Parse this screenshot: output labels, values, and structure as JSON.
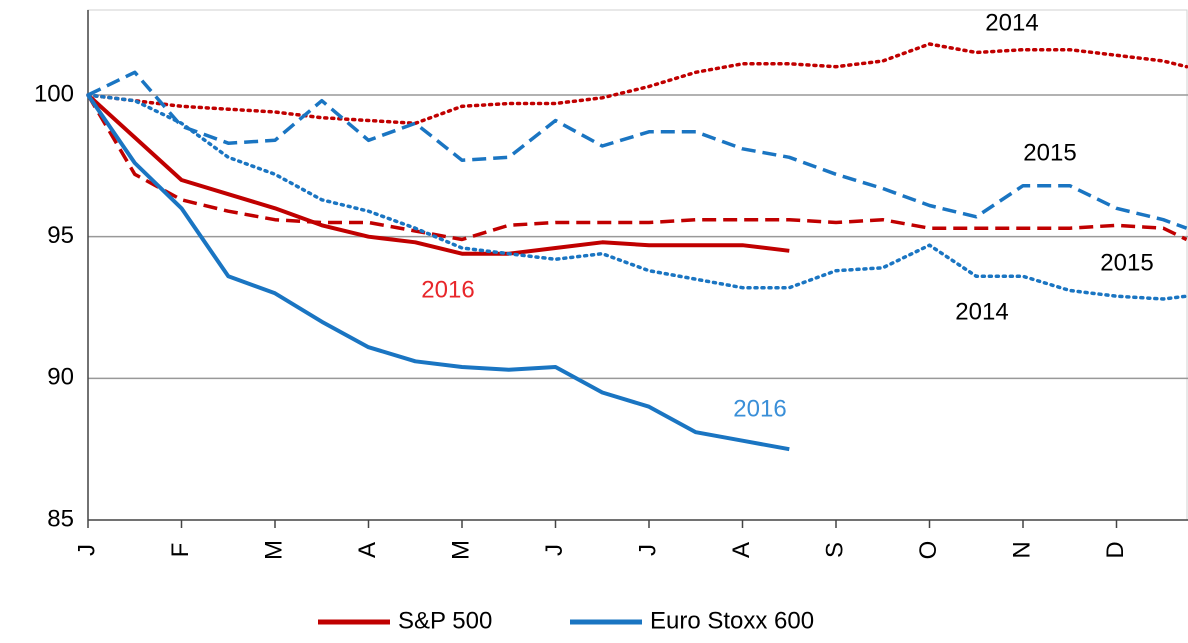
{
  "chart_data": {
    "type": "line",
    "categories": [
      "J",
      "F",
      "M",
      "A",
      "M",
      "J",
      "J",
      "A",
      "S",
      "O",
      "N",
      "D"
    ],
    "ylim": [
      85,
      103
    ],
    "yticks": [
      85,
      90,
      95,
      100
    ],
    "grid": true,
    "legend": "bottom",
    "series": [
      {
        "name": "S&P 500",
        "color": "#c00000",
        "lines": [
          {
            "label": "2014",
            "label_color": "#000000",
            "dash": "dotted",
            "x": [
              0,
              0.5,
              1,
              1.5,
              2,
              2.5,
              3,
              3.5,
              4,
              4.5,
              5,
              5.5,
              6,
              6.5,
              7,
              7.5,
              8,
              8.5,
              9,
              9.5,
              10,
              10.5,
              11,
              11.5,
              11.75
            ],
            "values": [
              100,
              99.8,
              99.6,
              99.5,
              99.4,
              99.2,
              99.1,
              99.0,
              99.6,
              99.7,
              99.7,
              99.9,
              100.3,
              100.8,
              101.1,
              101.1,
              101.0,
              101.2,
              101.8,
              101.5,
              101.6,
              101.6,
              101.4,
              101.2,
              101.0
            ]
          },
          {
            "label": "2015",
            "label_color": "#000000",
            "dash": "dashed",
            "x": [
              0,
              0.5,
              1,
              1.5,
              2,
              2.5,
              3,
              3.5,
              4,
              4.5,
              5,
              5.5,
              6,
              6.5,
              7,
              7.5,
              8,
              8.5,
              9,
              9.5,
              10,
              10.5,
              11,
              11.5,
              11.75
            ],
            "values": [
              100,
              97.2,
              96.3,
              95.9,
              95.6,
              95.5,
              95.5,
              95.2,
              94.9,
              95.4,
              95.5,
              95.5,
              95.5,
              95.6,
              95.6,
              95.6,
              95.5,
              95.6,
              95.3,
              95.3,
              95.3,
              95.3,
              95.4,
              95.3,
              94.9
            ]
          },
          {
            "label": "2016",
            "label_color": "#e8262a",
            "dash": "solid",
            "x": [
              0,
              0.5,
              1,
              1.5,
              2,
              2.5,
              3,
              3.5,
              4,
              4.5,
              5,
              5.5,
              6,
              6.5,
              7,
              7.5
            ],
            "values": [
              100,
              98.5,
              97.0,
              96.5,
              96.0,
              95.4,
              95.0,
              94.8,
              94.4,
              94.4,
              94.6,
              94.8,
              94.7,
              94.7,
              94.7,
              94.5
            ]
          }
        ]
      },
      {
        "name": "Euro Stoxx 600",
        "color": "#1a75c2",
        "lines": [
          {
            "label": "2014",
            "label_color": "#000000",
            "dash": "dotted",
            "x": [
              0,
              0.5,
              1,
              1.5,
              2,
              2.5,
              3,
              3.5,
              4,
              4.5,
              5,
              5.5,
              6,
              6.5,
              7,
              7.5,
              8,
              8.5,
              9,
              9.5,
              10,
              10.5,
              11,
              11.5,
              11.75
            ],
            "values": [
              100,
              99.8,
              99.0,
              97.8,
              97.2,
              96.3,
              95.9,
              95.3,
              94.6,
              94.4,
              94.2,
              94.4,
              93.8,
              93.5,
              93.2,
              93.2,
              93.8,
              93.9,
              94.7,
              93.6,
              93.6,
              93.1,
              92.9,
              92.8,
              92.9
            ]
          },
          {
            "label": "2015",
            "label_color": "#000000",
            "dash": "dashed",
            "x": [
              0,
              0.5,
              1,
              1.5,
              2,
              2.5,
              3,
              3.5,
              4,
              4.5,
              5,
              5.5,
              6,
              6.5,
              7,
              7.5,
              8,
              8.5,
              9,
              9.5,
              10,
              10.5,
              11,
              11.5,
              11.75
            ],
            "values": [
              100,
              100.8,
              98.9,
              98.3,
              98.4,
              99.8,
              98.4,
              99.0,
              97.7,
              97.8,
              99.1,
              98.2,
              98.7,
              98.7,
              98.1,
              97.8,
              97.2,
              96.7,
              96.1,
              95.7,
              96.8,
              96.8,
              96.0,
              95.6,
              95.3
            ]
          },
          {
            "label": "2016",
            "label_color": "#3a8fd8",
            "dash": "solid",
            "x": [
              0,
              0.5,
              1,
              1.5,
              2,
              2.5,
              3,
              3.5,
              4,
              4.5,
              5,
              5.5,
              6,
              6.5,
              7,
              7.5
            ],
            "values": [
              100,
              97.6,
              96.0,
              93.6,
              93.0,
              92.0,
              91.1,
              90.6,
              90.4,
              90.3,
              90.4,
              89.5,
              89.0,
              88.1,
              87.8,
              87.5
            ]
          }
        ]
      }
    ]
  }
}
